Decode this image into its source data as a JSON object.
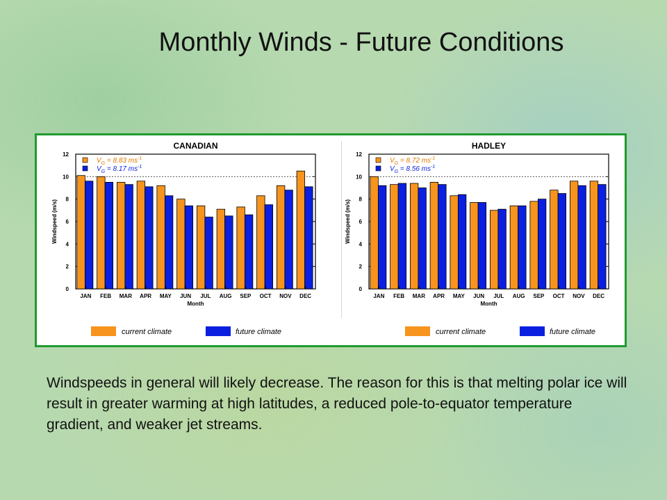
{
  "slide": {
    "title": "Monthly Winds - Future Conditions",
    "body": "Windspeeds in general will likely decrease. The reason for this is that melting polar ice will result in greater warming at high latitudes, a reduced pole-to-equator temperature gradient, and weaker jet streams."
  },
  "colors": {
    "current": "#f7941d",
    "future": "#0a1fe0",
    "panel_border": "#1f9a2f",
    "avg_current_text": "#e07b00",
    "avg_future_text": "#0a1fe0"
  },
  "chart_data": [
    {
      "type": "bar",
      "title": "CANADIAN",
      "xlabel": "Month",
      "ylabel": "Windspeed (m/s)",
      "ylim": [
        0,
        12
      ],
      "yticks": [
        "0",
        "2",
        "4",
        "6",
        "8",
        "10",
        "12"
      ],
      "reference_line": 10,
      "categories": [
        "JAN",
        "FEB",
        "MAR",
        "APR",
        "MAY",
        "JUN",
        "JUL",
        "AUG",
        "SEP",
        "OCT",
        "NOV",
        "DEC"
      ],
      "series": [
        {
          "name": "current climate",
          "values": [
            10.1,
            10.0,
            9.5,
            9.6,
            9.2,
            8.0,
            7.4,
            7.1,
            7.3,
            8.3,
            9.2,
            10.5
          ]
        },
        {
          "name": "future climate",
          "values": [
            9.6,
            9.5,
            9.3,
            9.1,
            8.3,
            7.4,
            6.4,
            6.5,
            6.6,
            7.5,
            8.8,
            9.1
          ]
        }
      ],
      "annotations": [
        {
          "symbol": "V",
          "subscript": "G",
          "text": " = 8.83 ms",
          "superscript": "-1"
        },
        {
          "symbol": "V",
          "subscript": "G",
          "text": " = 8.17 ms",
          "superscript": "-1"
        }
      ],
      "legend": [
        "current climate",
        "future climate"
      ]
    },
    {
      "type": "bar",
      "title": "HADLEY",
      "xlabel": "Month",
      "ylabel": "Windspeed (m/s)",
      "ylim": [
        0,
        12
      ],
      "yticks": [
        "0",
        "2",
        "4",
        "6",
        "8",
        "10",
        "12"
      ],
      "reference_line": 10,
      "categories": [
        "JAN",
        "FEB",
        "MAR",
        "APR",
        "MAY",
        "JUN",
        "JUL",
        "AUG",
        "SEP",
        "OCT",
        "NOV",
        "DEC"
      ],
      "series": [
        {
          "name": "current climate",
          "values": [
            10.0,
            9.3,
            9.4,
            9.5,
            8.3,
            7.7,
            7.0,
            7.4,
            7.8,
            8.8,
            9.6,
            9.6
          ]
        },
        {
          "name": "future climate",
          "values": [
            9.2,
            9.4,
            9.0,
            9.3,
            8.4,
            7.7,
            7.1,
            7.4,
            8.0,
            8.5,
            9.2,
            9.3
          ]
        }
      ],
      "annotations": [
        {
          "symbol": "V",
          "subscript": "G",
          "text": " = 8.72 ms",
          "superscript": "-1"
        },
        {
          "symbol": "V",
          "subscript": "G",
          "text": " = 8.56 ms",
          "superscript": "-1"
        }
      ],
      "legend": [
        "current climate",
        "future climate"
      ]
    }
  ]
}
